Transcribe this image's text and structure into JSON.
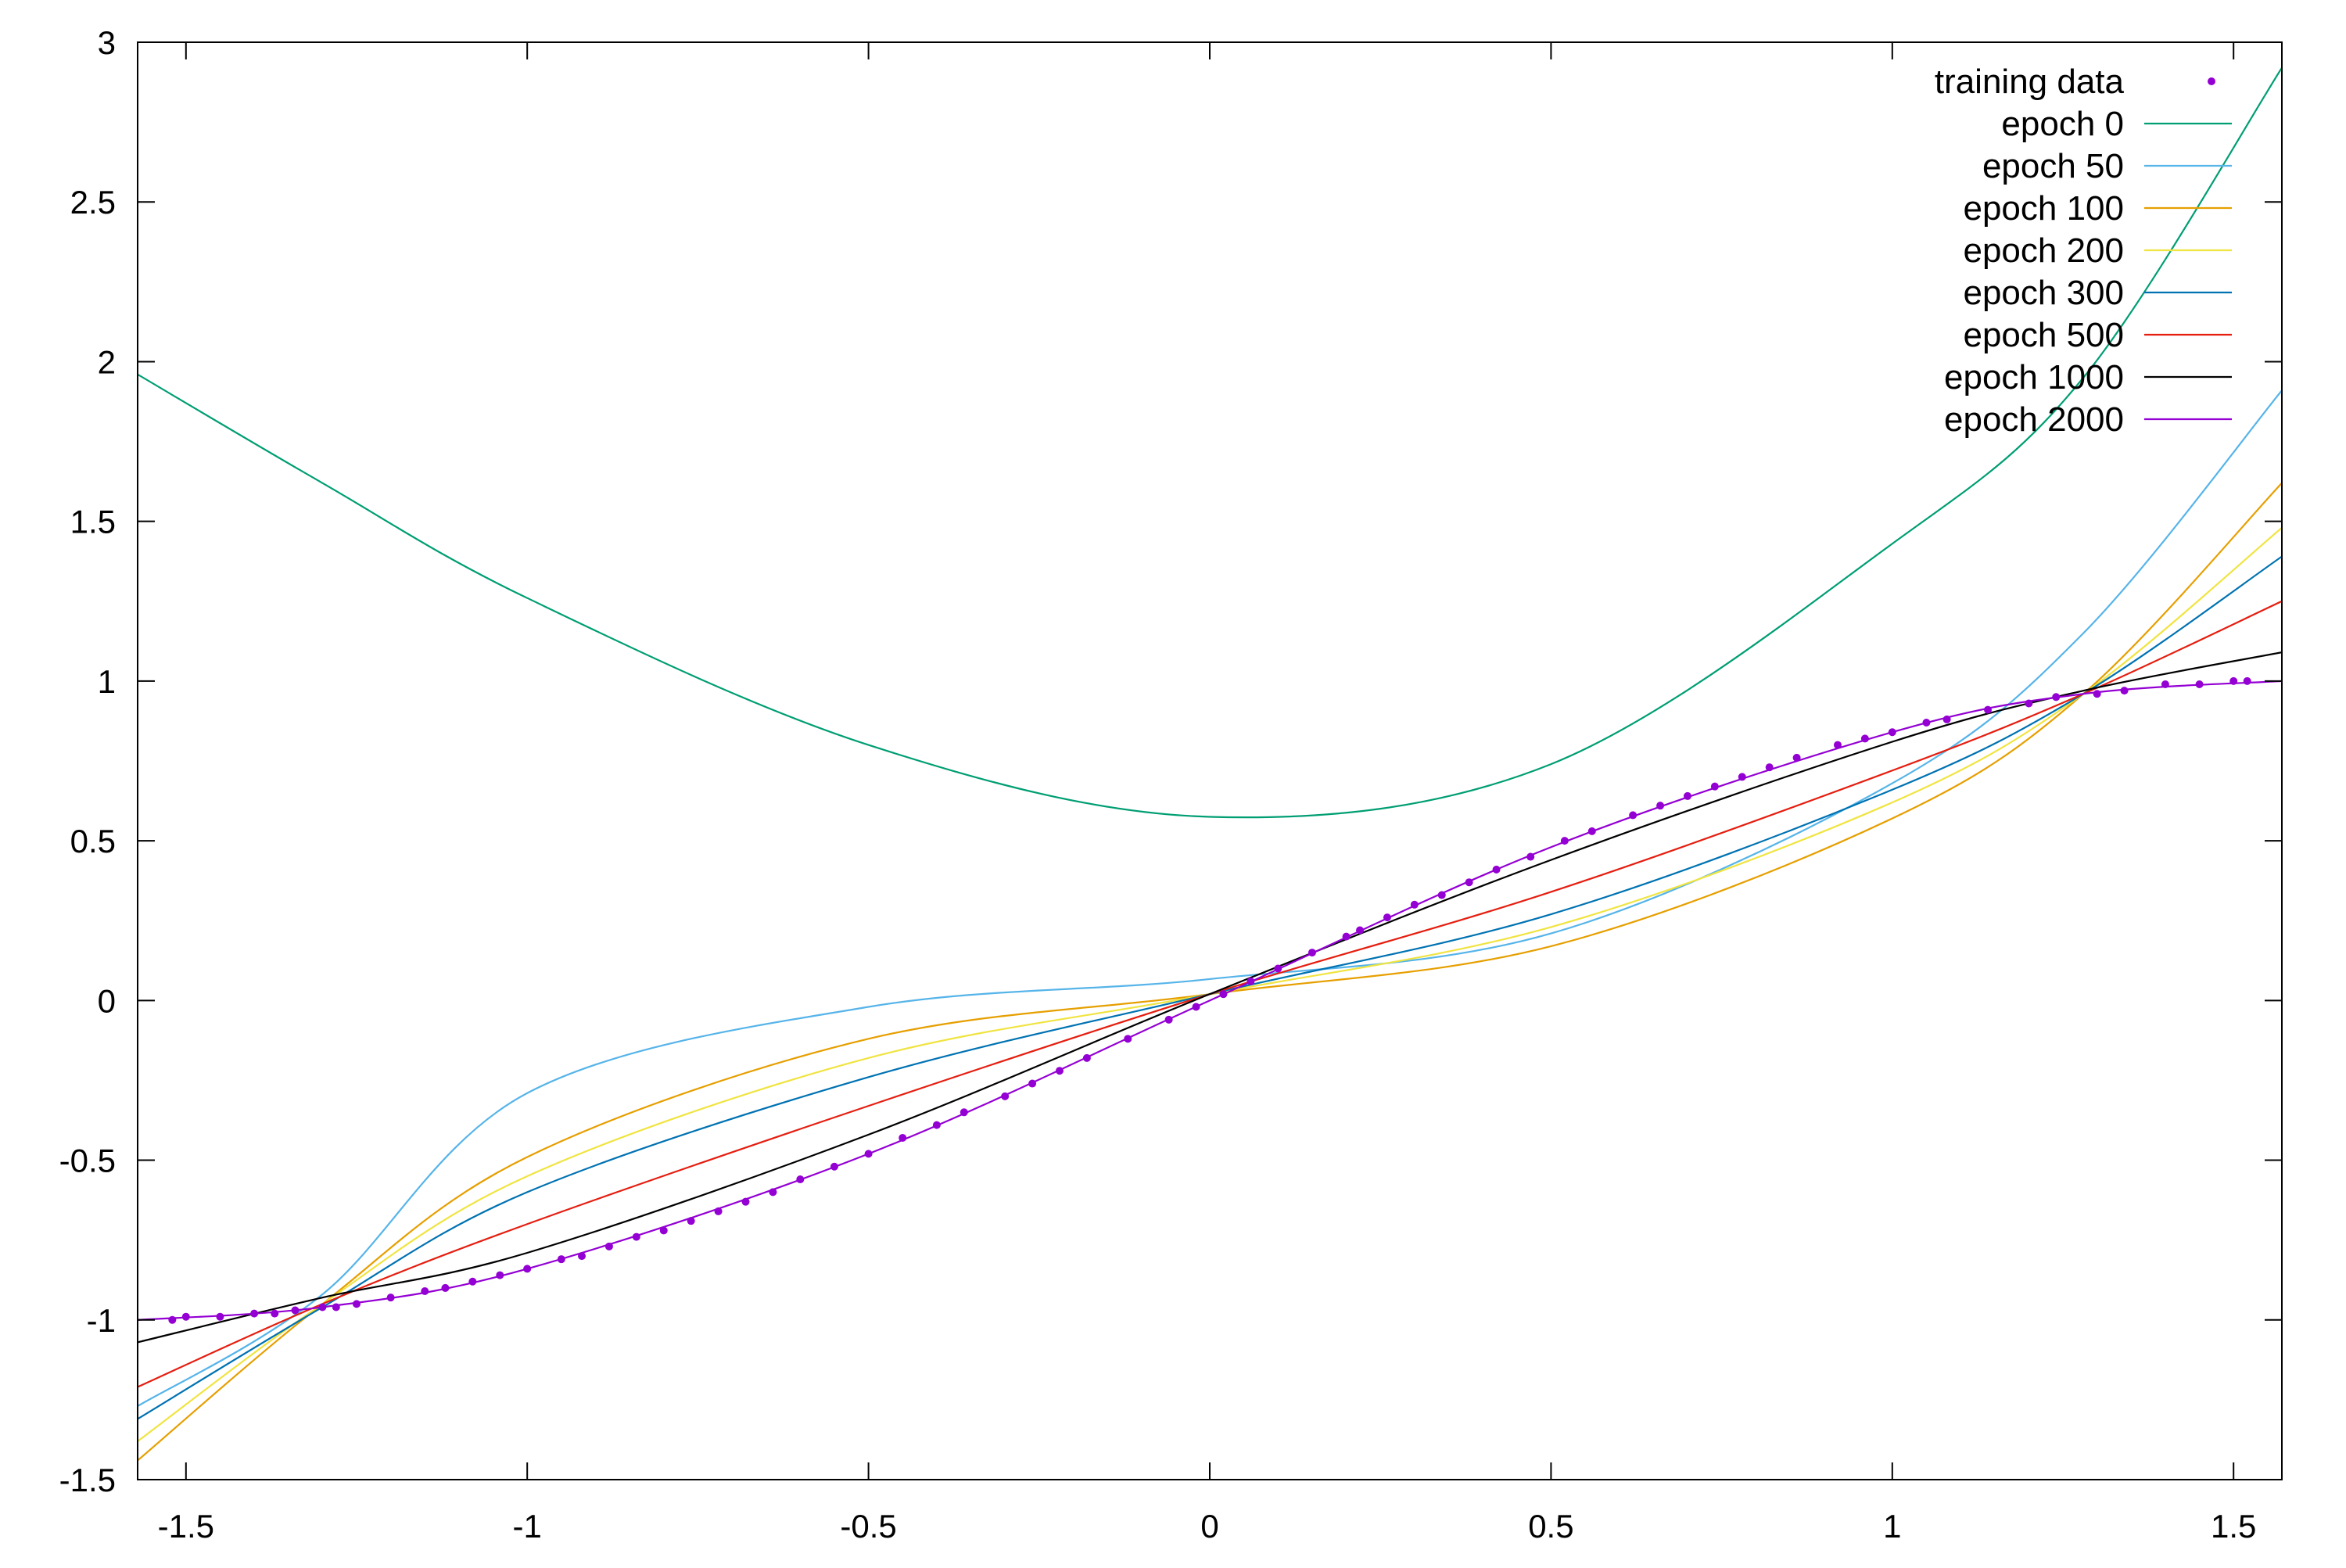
{
  "chart_data": {
    "type": "line",
    "title": "",
    "xlabel": "",
    "ylabel": "",
    "xlim": [
      -1.5708,
      1.5708
    ],
    "ylim": [
      -1.5,
      3
    ],
    "grid": false,
    "legend_position": "top-right, inside",
    "x_ticks": [
      -1.5,
      -1,
      -0.5,
      0,
      0.5,
      1,
      1.5
    ],
    "x_tick_labels": [
      "-1.5",
      "-1",
      "-0.5",
      "0",
      "0.5",
      "1",
      "1.5"
    ],
    "y_ticks": [
      -1.5,
      -1,
      -0.5,
      0,
      0.5,
      1,
      1.5,
      2,
      2.5,
      3
    ],
    "y_tick_labels": [
      "-1.5",
      "-1",
      "-0.5",
      "0",
      "0.5",
      "1",
      "1.5",
      "2",
      "2.5",
      "3"
    ],
    "x": [
      -1.5708,
      -1.3,
      -1.0,
      -0.5,
      0.0,
      0.5,
      1.0,
      1.28,
      1.5708
    ],
    "series": [
      {
        "name": "epoch 0",
        "color": "#009e73",
        "values": [
          1.96,
          1.62,
          1.26,
          0.8,
          0.575,
          0.74,
          1.43,
          1.95,
          2.92
        ]
      },
      {
        "name": "epoch 50",
        "color": "#56b4e9",
        "values": [
          -1.27,
          -0.92,
          -0.29,
          -0.02,
          0.067,
          0.21,
          0.68,
          1.15,
          1.91
        ]
      },
      {
        "name": "epoch 100",
        "color": "#e69f00",
        "values": [
          -1.44,
          -0.95,
          -0.49,
          -0.12,
          0.02,
          0.17,
          0.57,
          0.96,
          1.62
        ]
      },
      {
        "name": "epoch 200",
        "color": "#f0e442",
        "values": [
          -1.38,
          -0.95,
          -0.55,
          -0.18,
          0.02,
          0.23,
          0.62,
          0.96,
          1.48
        ]
      },
      {
        "name": "epoch 300",
        "color": "#0072b2",
        "values": [
          -1.31,
          -0.96,
          -0.6,
          -0.24,
          0.02,
          0.27,
          0.66,
          0.96,
          1.39
        ]
      },
      {
        "name": "epoch 500",
        "color": "#e51e10",
        "values": [
          -1.21,
          -0.95,
          -0.7,
          -0.33,
          0.02,
          0.34,
          0.72,
          0.96,
          1.25
        ]
      },
      {
        "name": "epoch 1000",
        "color": "#000000",
        "values": [
          -1.07,
          -0.93,
          -0.79,
          -0.42,
          0.02,
          0.44,
          0.81,
          0.97,
          1.09
        ]
      },
      {
        "name": "epoch 2000",
        "color": "#9400d3",
        "values": [
          -1.0,
          -0.96,
          -0.84,
          -0.48,
          0.0,
          0.48,
          0.84,
          0.96,
          1.0
        ]
      }
    ],
    "scatter": {
      "name": "training data",
      "color": "#9400d3",
      "x": [
        -1.52,
        -1.5,
        -1.45,
        -1.4,
        -1.37,
        -1.34,
        -1.3,
        -1.28,
        -1.25,
        -1.2,
        -1.15,
        -1.12,
        -1.08,
        -1.04,
        -1.0,
        -0.95,
        -0.92,
        -0.88,
        -0.84,
        -0.8,
        -0.76,
        -0.72,
        -0.68,
        -0.64,
        -0.6,
        -0.55,
        -0.5,
        -0.45,
        -0.4,
        -0.36,
        -0.3,
        -0.26,
        -0.22,
        -0.18,
        -0.12,
        -0.06,
        -0.02,
        0.02,
        0.06,
        0.1,
        0.15,
        0.2,
        0.22,
        0.26,
        0.3,
        0.34,
        0.38,
        0.42,
        0.47,
        0.52,
        0.56,
        0.62,
        0.66,
        0.7,
        0.74,
        0.78,
        0.82,
        0.86,
        0.92,
        0.96,
        1.0,
        1.05,
        1.08,
        1.14,
        1.2,
        1.24,
        1.3,
        1.34,
        1.4,
        1.45,
        1.5,
        1.52
      ],
      "y": [
        -1.0,
        -0.99,
        -0.99,
        -0.98,
        -0.98,
        -0.97,
        -0.96,
        -0.96,
        -0.95,
        -0.93,
        -0.91,
        -0.9,
        -0.88,
        -0.86,
        -0.84,
        -0.81,
        -0.8,
        -0.77,
        -0.74,
        -0.72,
        -0.69,
        -0.66,
        -0.63,
        -0.6,
        -0.56,
        -0.52,
        -0.48,
        -0.43,
        -0.39,
        -0.35,
        -0.3,
        -0.26,
        -0.22,
        -0.18,
        -0.12,
        -0.06,
        -0.02,
        0.02,
        0.06,
        0.1,
        0.15,
        0.2,
        0.22,
        0.26,
        0.3,
        0.33,
        0.37,
        0.41,
        0.45,
        0.5,
        0.53,
        0.58,
        0.61,
        0.64,
        0.67,
        0.7,
        0.73,
        0.76,
        0.8,
        0.82,
        0.84,
        0.87,
        0.88,
        0.91,
        0.93,
        0.95,
        0.96,
        0.97,
        0.99,
        0.99,
        1.0,
        1.0
      ]
    }
  },
  "legend": {
    "items": [
      {
        "label": "training data",
        "color": "#9400d3",
        "kind": "point"
      },
      {
        "label": "epoch 0",
        "color": "#009e73",
        "kind": "line"
      },
      {
        "label": "epoch 50",
        "color": "#56b4e9",
        "kind": "line"
      },
      {
        "label": "epoch 100",
        "color": "#e69f00",
        "kind": "line"
      },
      {
        "label": "epoch 200",
        "color": "#f0e442",
        "kind": "line"
      },
      {
        "label": "epoch 300",
        "color": "#0072b2",
        "kind": "line"
      },
      {
        "label": "epoch 500",
        "color": "#e51e10",
        "kind": "line"
      },
      {
        "label": "epoch 1000",
        "color": "#000000",
        "kind": "line"
      },
      {
        "label": "epoch 2000",
        "color": "#9400d3",
        "kind": "line"
      }
    ]
  }
}
